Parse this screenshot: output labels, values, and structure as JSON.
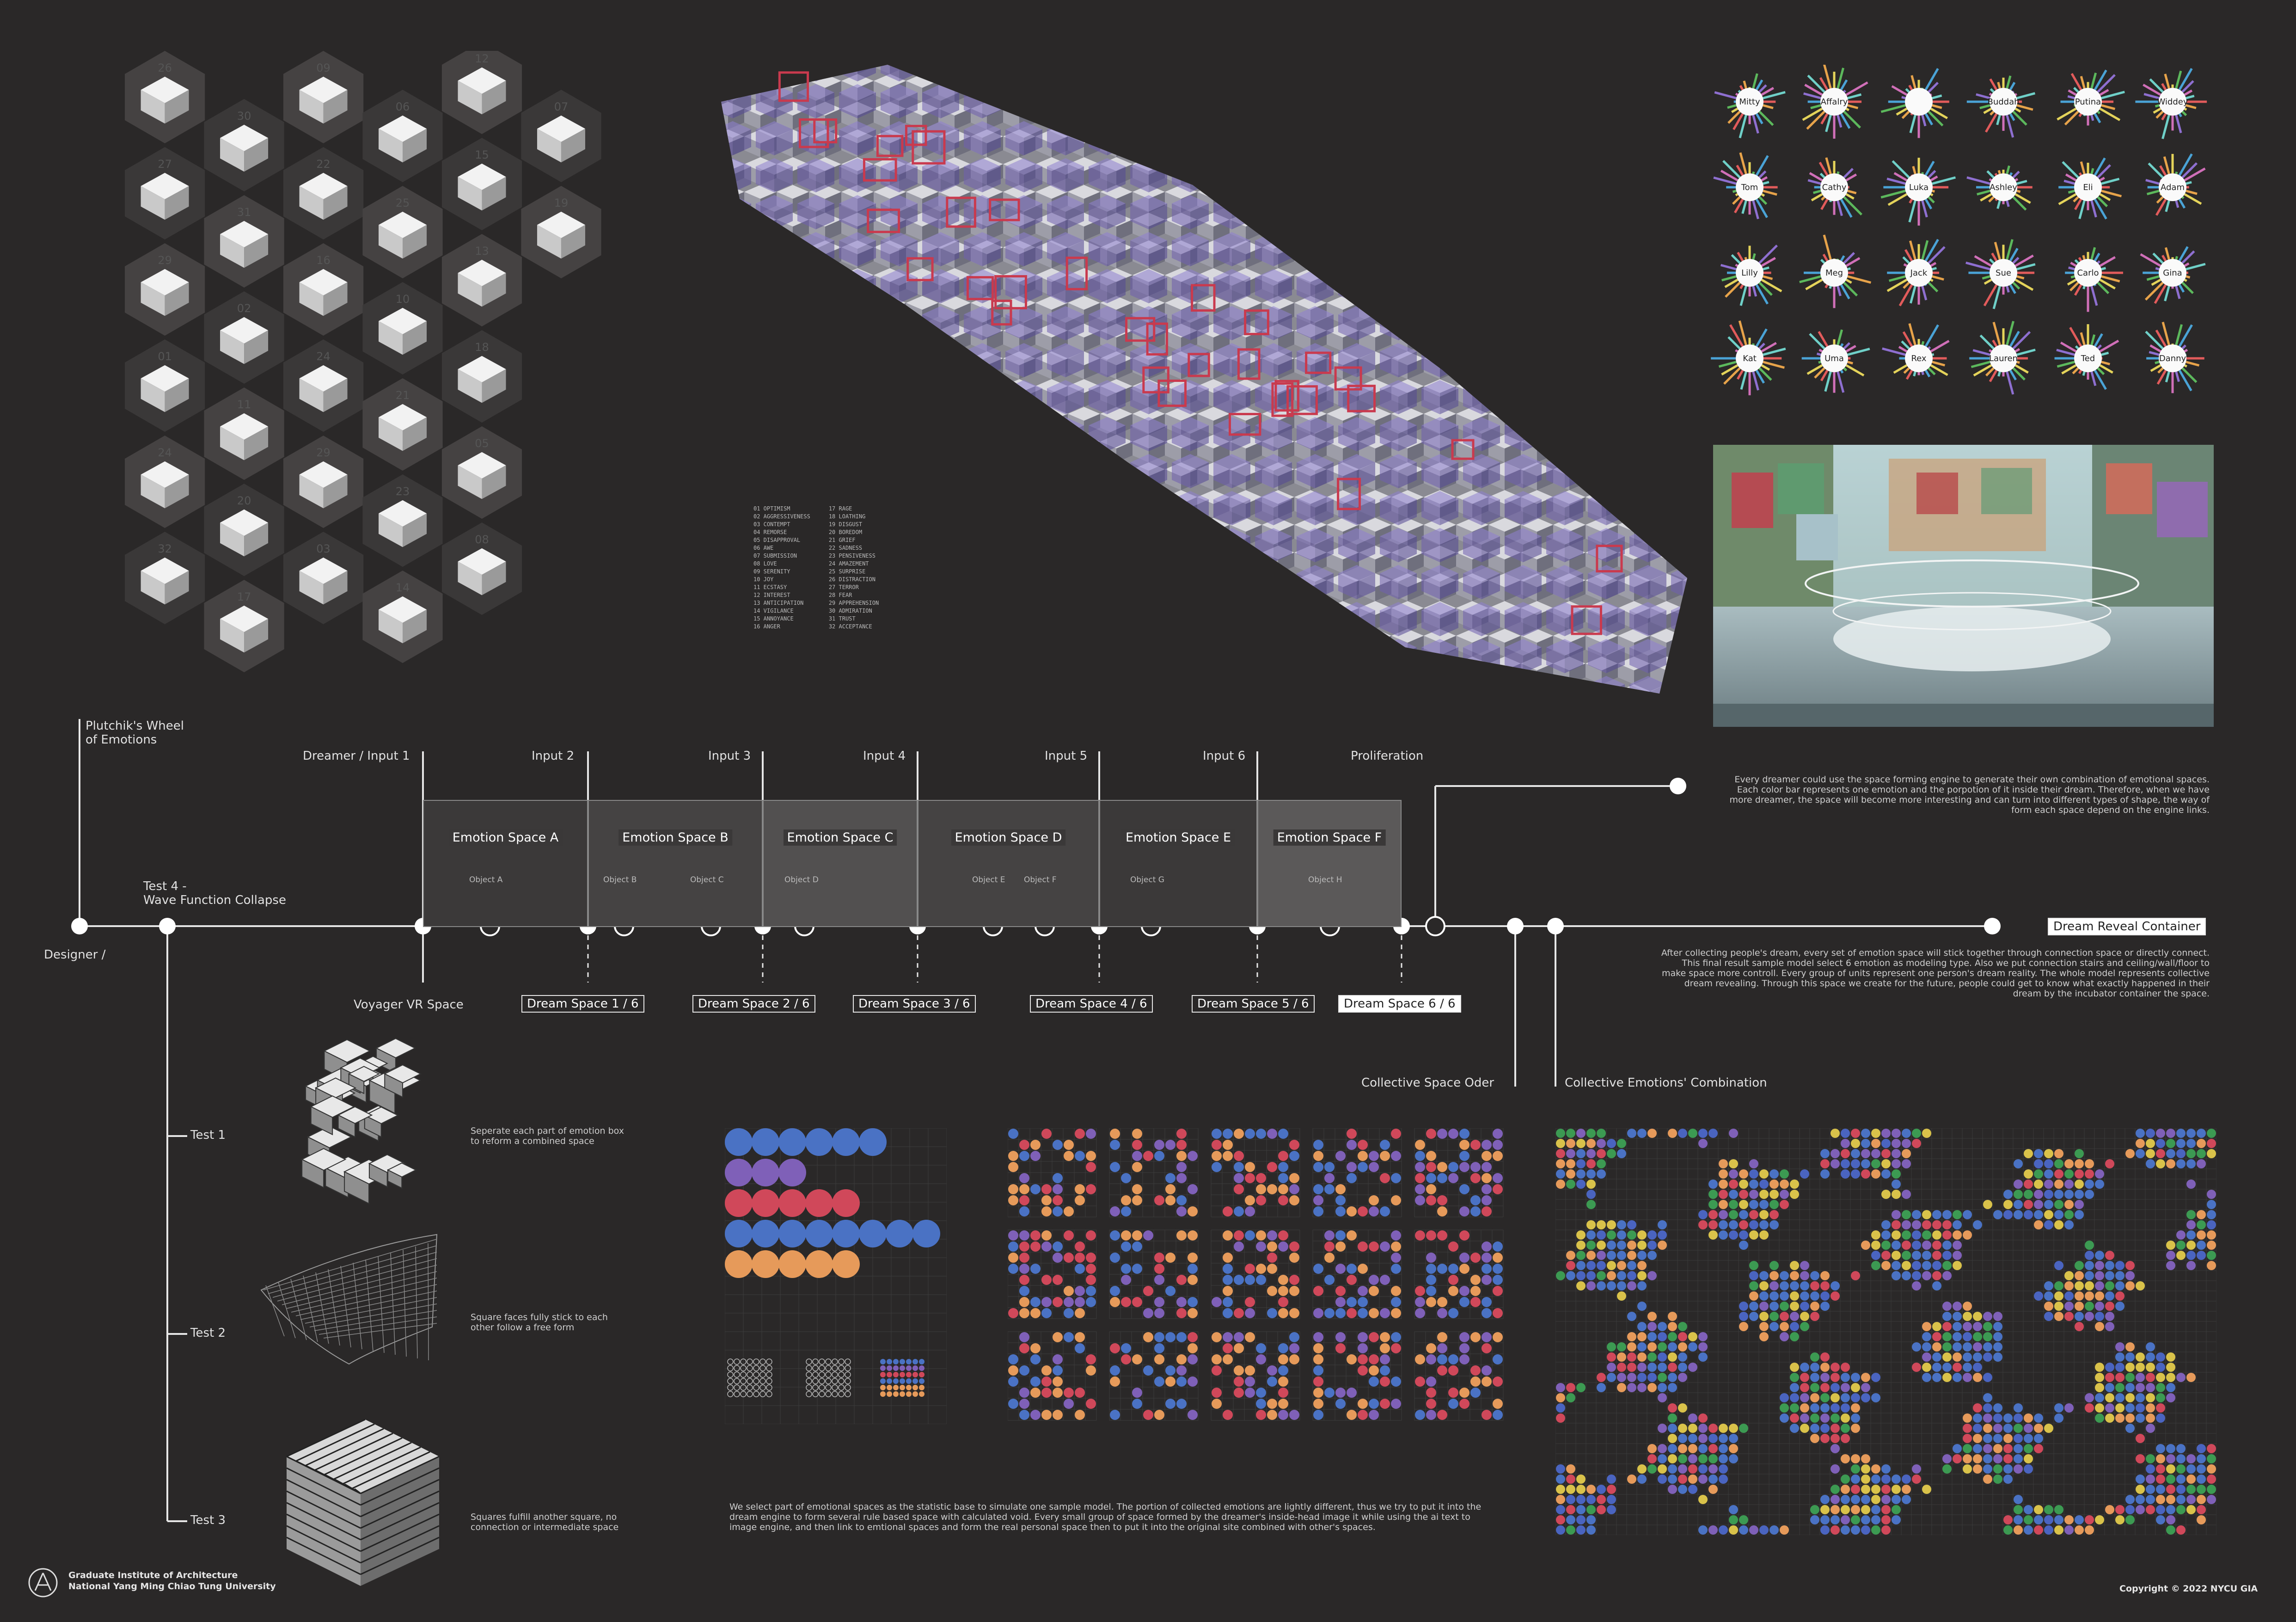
{
  "hex_grid": {
    "labels": [
      "26",
      "27",
      "29",
      "01",
      "24",
      "32",
      "30",
      "31",
      "02",
      "11",
      "20",
      "17",
      "09",
      "22",
      "16",
      "24",
      "29",
      "03",
      "06",
      "25",
      "10",
      "21",
      "23",
      "14",
      "12",
      "15",
      "13",
      "18",
      "05",
      "08",
      "07",
      "19"
    ]
  },
  "emotion_list": {
    "left": [
      "01  OPTIMISM",
      "02  AGGRESSIVENESS",
      "03  CONTEMPT",
      "04  REMORSE",
      "05  DISAPPROVAL",
      "06  AWE",
      "07  SUBMISSION",
      "08  LOVE",
      "09  SERENITY",
      "10  JOY",
      "11  ECSTASY",
      "12  INTEREST",
      "13  ANTICIPATION",
      "14  VIGILANCE",
      "15  ANNOYANCE",
      "16  ANGER"
    ],
    "right": [
      "17  RAGE",
      "18  LOATHING",
      "19  DISGUST",
      "20  BOREDOM",
      "21  GRIEF",
      "22  SADNESS",
      "23  PENSIVENESS",
      "24  AMAZEMENT",
      "25  SURPRISE",
      "26  DISTRACTION",
      "27  TERROR",
      "28  FEAR",
      "29  APPREHENSION",
      "30  ADMIRATION",
      "31  TRUST",
      "32  ACCEPTANCE"
    ]
  },
  "personas": [
    "Mitty",
    "Affalry",
    "",
    "Buddah",
    "Putina",
    "Widdey",
    "Tom",
    "Cathy",
    "Luka",
    "Ashley",
    "Eli",
    "Adam",
    "Lilly",
    "Meg",
    "Jack",
    "Sue",
    "Carlo",
    "Gina",
    "Kat",
    "Uma",
    "Rex",
    "Lauren",
    "Ted",
    "Danny"
  ],
  "timeline": {
    "plutchik": "Plutchik's Wheel\nof Emotions",
    "designer": "Designer /",
    "test4": "Test 4 -\nWave Function Collapse",
    "inputs": [
      "Dreamer / Input 1",
      "Input 2",
      "Input 3",
      "Input 4",
      "Input 5",
      "Input 6",
      "Proliferation"
    ],
    "spaces": [
      "Emotion Space A",
      "Emotion Space B",
      "Emotion Space C",
      "Emotion Space D",
      "Emotion Space E",
      "Emotion Space F"
    ],
    "objects": [
      "Object A",
      "Object B",
      "Object C",
      "Object D",
      "Object E",
      "Object F",
      "Object G",
      "Object H"
    ],
    "voyager": "Voyager VR Space",
    "dreams": [
      "Dream Space 1 / 6",
      "Dream Space 2 / 6",
      "Dream Space 3 / 6",
      "Dream Space 4 / 6",
      "Dream Space 5 / 6",
      "Dream Space 6 / 6"
    ],
    "reveal": "Dream Reveal Container",
    "collective_order": "Collective Space Oder",
    "collective_comb": "Collective Emotions' Combination"
  },
  "tests": [
    {
      "label": "Test 1",
      "desc": "Seperate each part of emotion box to reform a combined space"
    },
    {
      "label": "Test 2",
      "desc": "Square faces fully stick to each other follow a free form"
    },
    {
      "label": "Test 3",
      "desc": "Squares fulfill another square, no connection or intermediate space"
    }
  ],
  "texts": {
    "proliferation_desc": "Every dreamer could use the space forming engine to generate their own combination of emotional spaces. Each color bar represents one emotion and the porpotion of it inside their dream. Therefore, when we have more dreamer, the space will become more interesting and can turn into different types of shape, the way of form each space depend on the engine links.",
    "reveal_desc": "After collecting people's dream, every set of emotion space will stick together through connection space or directly connect. This final result sample model select 6 emotion as modeling type. Also we put connection stairs and ceiling/wall/floor to make space more controll. Every group of units represent one person's dream reality. The whole model represents collective dream revealing. Through this space we create for the future, people could get to know what exactly happened in their dream by the incubator container the space.",
    "bottom_desc": "We select part of emotional spaces as the statistic base to simulate one sample model. The portion of collected emotions are lightly different, thus we try to put it into the dream engine to form several rule based space with calculated void. Every small group of space formed by the dreamer's inside-head image it while using the ai text to image engine, and then link to emtional spaces and form the real personal space then to put it into the original site combined with other's spaces."
  },
  "footer": {
    "inst1": "Graduate Institute of Architecture",
    "inst2": "National Yang Ming Chiao Tung University",
    "copyright": "Copyright © 2022 NYCU GIA"
  },
  "colors": {
    "bg": "#2a2828",
    "blue": "#4a72c4",
    "purple": "#7f60b8",
    "red": "#d0485a",
    "orange": "#e69a5a",
    "green": "#3c9a52",
    "yellow": "#d9c24a"
  },
  "dot_matrix": {
    "rows": [
      {
        "color": "blue",
        "count": 6
      },
      {
        "color": "purple",
        "count": 3
      },
      {
        "color": "red",
        "count": 5
      },
      {
        "color": "blue",
        "count": 8
      },
      {
        "color": "orange",
        "count": 5
      }
    ]
  }
}
